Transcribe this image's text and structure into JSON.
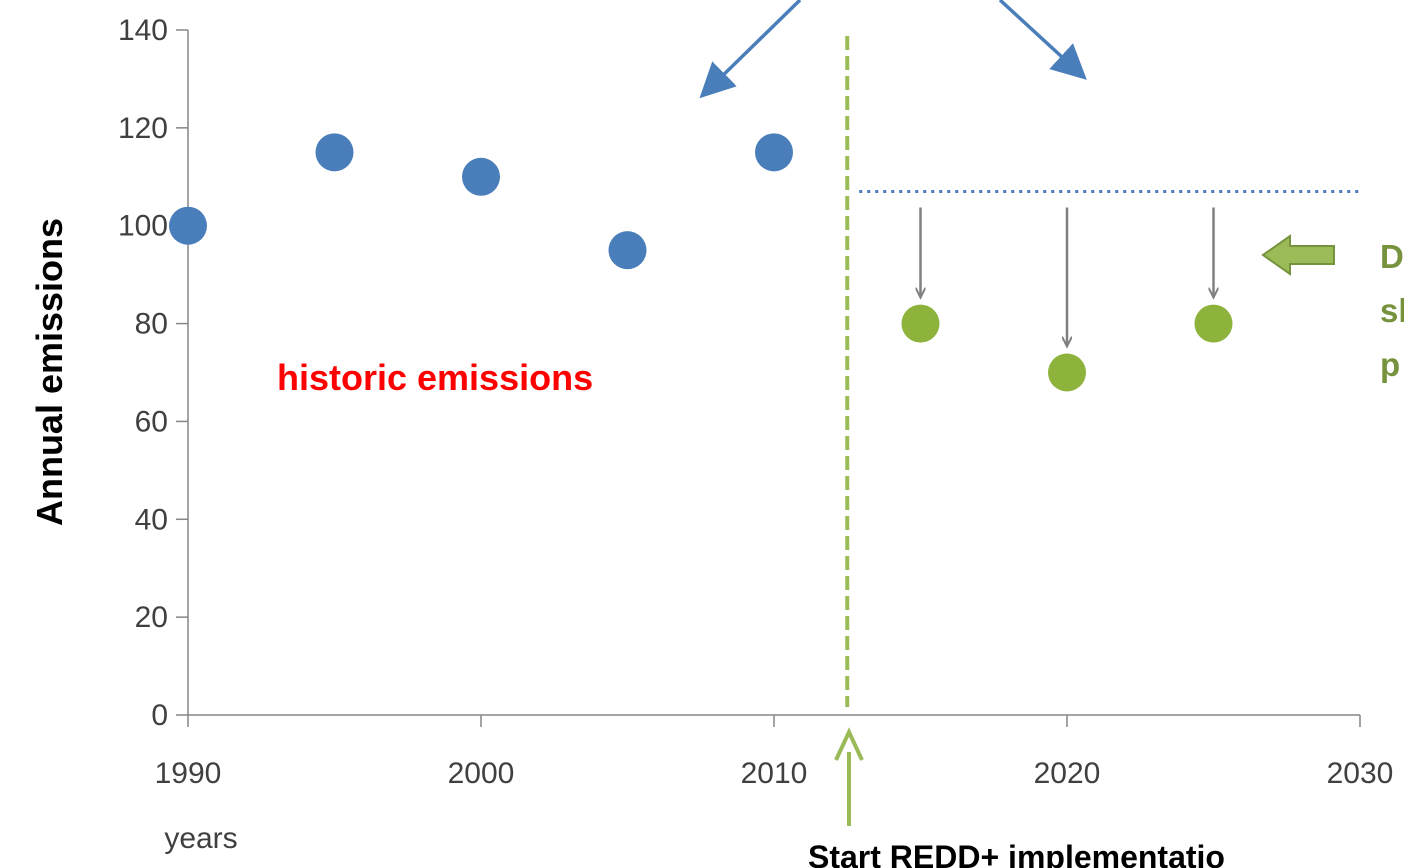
{
  "chart_data": {
    "type": "scatter",
    "title": "",
    "xlabel": "years",
    "ylabel": "Annual emissions",
    "xlim": [
      1990,
      2030
    ],
    "ylim": [
      0,
      140
    ],
    "x_ticks": [
      1990,
      2000,
      2010,
      2020,
      2030
    ],
    "y_ticks": [
      0,
      20,
      40,
      60,
      80,
      100,
      120,
      140
    ],
    "grid": false,
    "series": [
      {
        "color": "#4a7ebb",
        "points": [
          {
            "x": 1990,
            "y": 100
          },
          {
            "x": 1995,
            "y": 115
          },
          {
            "x": 2000,
            "y": 110
          },
          {
            "x": 2005,
            "y": 95
          },
          {
            "x": 2010,
            "y": 115
          }
        ]
      },
      {
        "color": "#8db33c",
        "points": [
          {
            "x": 2015,
            "y": 80
          },
          {
            "x": 2020,
            "y": 70
          },
          {
            "x": 2025,
            "y": 80
          }
        ]
      }
    ],
    "reference_level": {
      "y": 107,
      "x_from": 2012.5,
      "x_to": 2030,
      "style": "dotted",
      "color": "#4a7ebb"
    },
    "implementation_start": {
      "x": 2012.5,
      "style": "dashed",
      "color": "#9bbb59"
    },
    "annotations": {
      "historic": {
        "text": "historic emissions",
        "color": "#ff0000"
      },
      "green_lines": [
        "D",
        "sl",
        "p"
      ],
      "green_color": "#76923c",
      "start": "Start REDD+ implementatio"
    }
  }
}
